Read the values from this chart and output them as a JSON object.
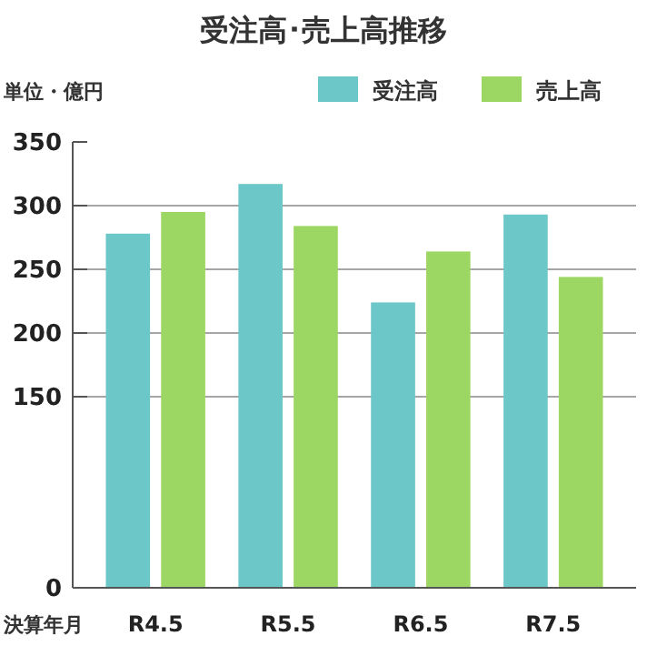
{
  "chart_data": {
    "type": "bar",
    "title": "受注高･売上高推移",
    "ylabel": "単位・億円",
    "xlabel": "決算年月",
    "categories": [
      "R4.5",
      "R5.5",
      "R6.5",
      "R7.5"
    ],
    "series": [
      {
        "name": "受注高",
        "color": "#6cc8c8",
        "values": [
          278,
          317,
          224,
          293
        ]
      },
      {
        "name": "売上高",
        "color": "#9dd763",
        "values": [
          295,
          284,
          264,
          244
        ]
      }
    ],
    "ylim": [
      0,
      350
    ],
    "yticks": [
      0,
      150,
      200,
      250,
      300,
      350
    ],
    "grid": "y",
    "legend": "top right"
  }
}
